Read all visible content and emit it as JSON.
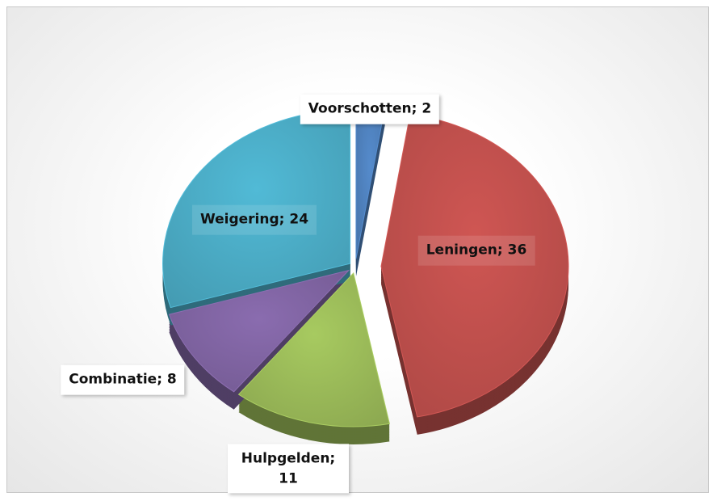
{
  "chart_data": {
    "type": "pie",
    "categories": [
      "Voorschotten",
      "Leningen",
      "Hulpgelden",
      "Combinatie",
      "Weigering"
    ],
    "values": [
      2,
      36,
      11,
      8,
      24
    ],
    "value_labels": [
      "Voorschotten; 2",
      "Leningen; 36",
      "Hulpgelden; 11",
      "Combinatie; 8",
      "Weigering; 24"
    ],
    "colors": [
      "#4f81bd",
      "#c0504d",
      "#9bbb59",
      "#8064a2",
      "#4bacc6"
    ]
  }
}
